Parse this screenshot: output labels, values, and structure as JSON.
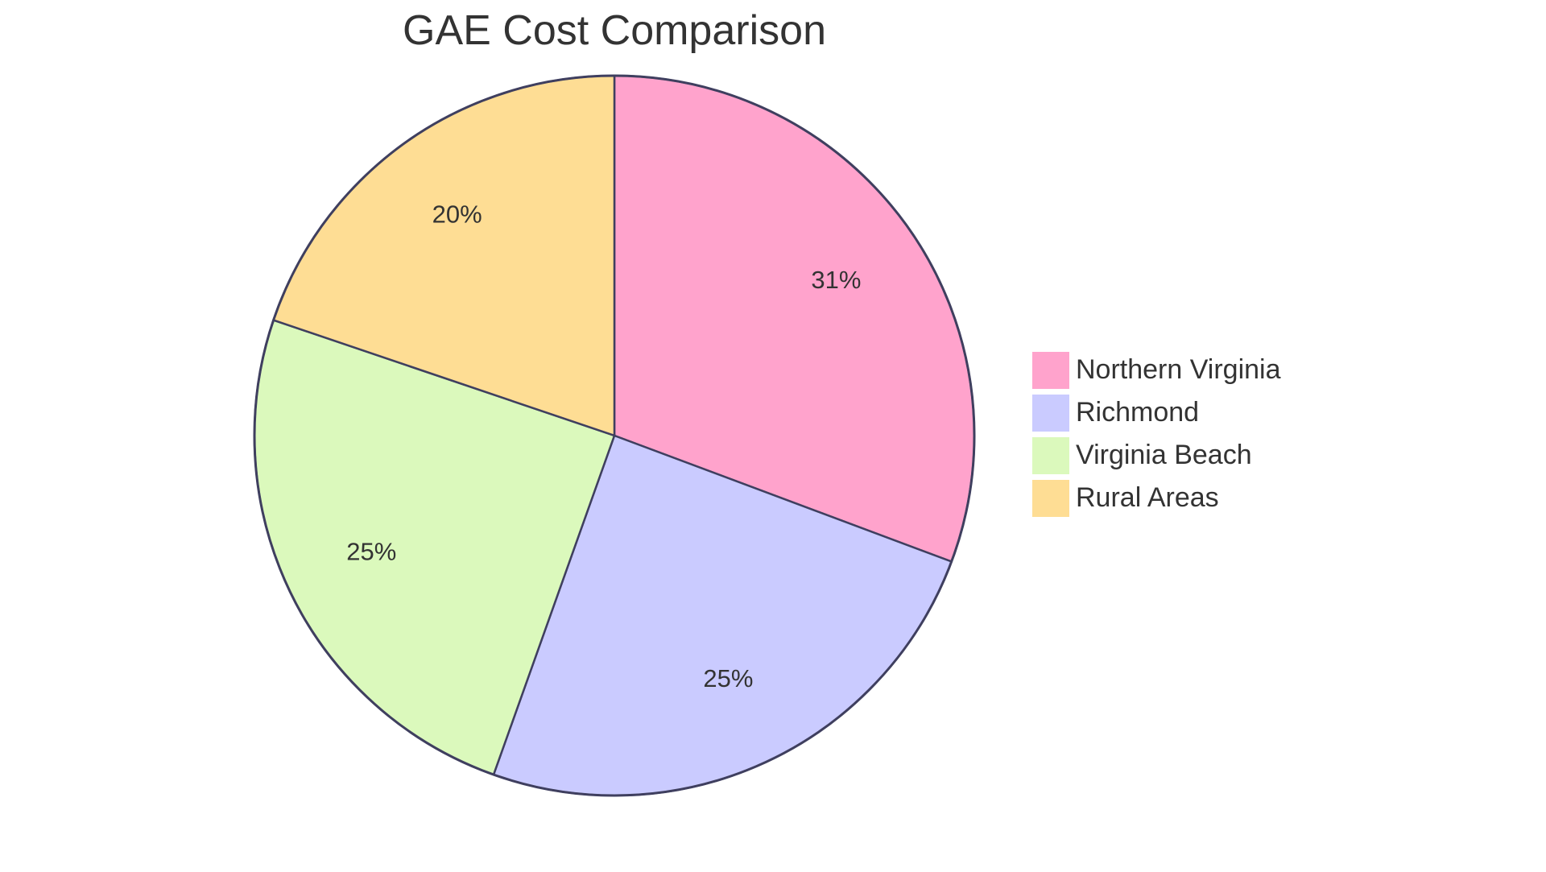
{
  "chart_data": {
    "type": "pie",
    "title": "GAE Cost Comparison",
    "categories": [
      "Northern Virginia",
      "Richmond",
      "Virginia Beach",
      "Rural Areas"
    ],
    "values": [
      31,
      25,
      25,
      20
    ],
    "labels": [
      "31%",
      "25%",
      "25%",
      "20%"
    ],
    "colors": [
      "#FFA3CC",
      "#CACBFF",
      "#DBF9BC",
      "#FEDD94"
    ],
    "stroke_color": "#3F3F5F",
    "legend_position": "right",
    "start_angle": "top, clockwise"
  },
  "legend": {
    "items": [
      {
        "label": "Northern Virginia",
        "color": "#FFA3CC"
      },
      {
        "label": "Richmond",
        "color": "#CACBFF"
      },
      {
        "label": "Virginia Beach",
        "color": "#DBF9BC"
      },
      {
        "label": "Rural Areas",
        "color": "#FEDD94"
      }
    ]
  }
}
